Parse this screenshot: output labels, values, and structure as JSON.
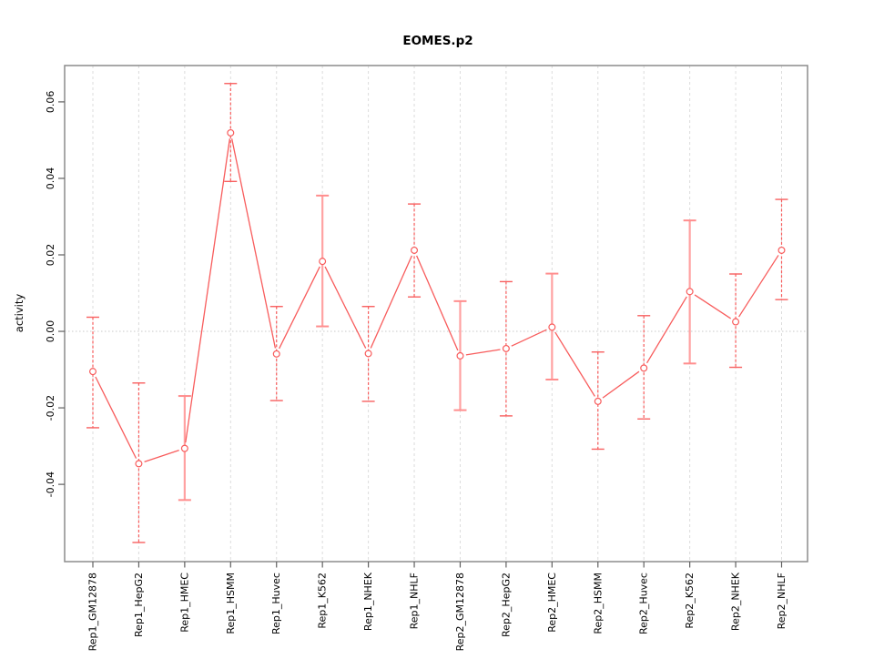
{
  "chart_data": {
    "type": "line",
    "title": "EOMES.p2",
    "xlabel": "",
    "ylabel": "activity",
    "legend": "none",
    "grid": "vertical dashed gridlines at each category; dotted horizontal line at y=0",
    "categories": [
      "Rep1_GM12878",
      "Rep1_HepG2",
      "Rep1_HMEC",
      "Rep1_HSMM",
      "Rep1_Huvec",
      "Rep1_K562",
      "Rep1_NHEK",
      "Rep1_NHLF",
      "Rep2_GM12878",
      "Rep2_HepG2",
      "Rep2_HMEC",
      "Rep2_HSMM",
      "Rep2_Huvec",
      "Rep2_K562",
      "Rep2_NHEK",
      "Rep2_NHLF"
    ],
    "series": [
      {
        "name": "activity",
        "values": [
          -0.0105,
          -0.0346,
          -0.0306,
          0.0519,
          -0.0059,
          0.0183,
          -0.0058,
          0.0212,
          -0.0064,
          -0.0045,
          0.0011,
          -0.0183,
          -0.0096,
          0.0104,
          0.0025,
          0.0212
        ]
      }
    ],
    "error_high": [
      0.0037,
      -0.0135,
      -0.0169,
      0.0648,
      0.0065,
      0.0355,
      0.0065,
      0.0333,
      0.0079,
      0.013,
      0.0151,
      -0.0054,
      0.0041,
      0.029,
      0.015,
      0.0345
    ],
    "error_low": [
      -0.0252,
      -0.0552,
      -0.0441,
      0.0392,
      -0.0181,
      0.0013,
      -0.0183,
      0.009,
      -0.0206,
      -0.0221,
      -0.0126,
      -0.0308,
      -0.0229,
      -0.0084,
      -0.0094,
      0.0083
    ],
    "error_bar_styles": [
      "dashed",
      "dashed",
      "solid",
      "dashed",
      "dashed",
      "solid",
      "dashed",
      "dashed",
      "solid",
      "dashed",
      "solid",
      "dashed",
      "dashed",
      "solid",
      "dashed",
      "dashed"
    ],
    "ytick_values": [
      -0.04,
      -0.02,
      0.0,
      0.02,
      0.04,
      0.06
    ],
    "ytick_labels": [
      "-0.04",
      "-0.02",
      "0.00",
      "0.02",
      "0.04",
      "0.06"
    ],
    "ylim": [
      -0.0602,
      0.0695
    ],
    "colors": {
      "line": "#f85c5c",
      "point": "#f85c5c",
      "error_dashed": "#f85c5c",
      "error_solid": "#ffa2a2",
      "gridline": "#dcdcdc",
      "zero_line": "#c8c8c8",
      "box": "#8c8c8c",
      "tick": "#606060",
      "text": "#000000"
    }
  }
}
